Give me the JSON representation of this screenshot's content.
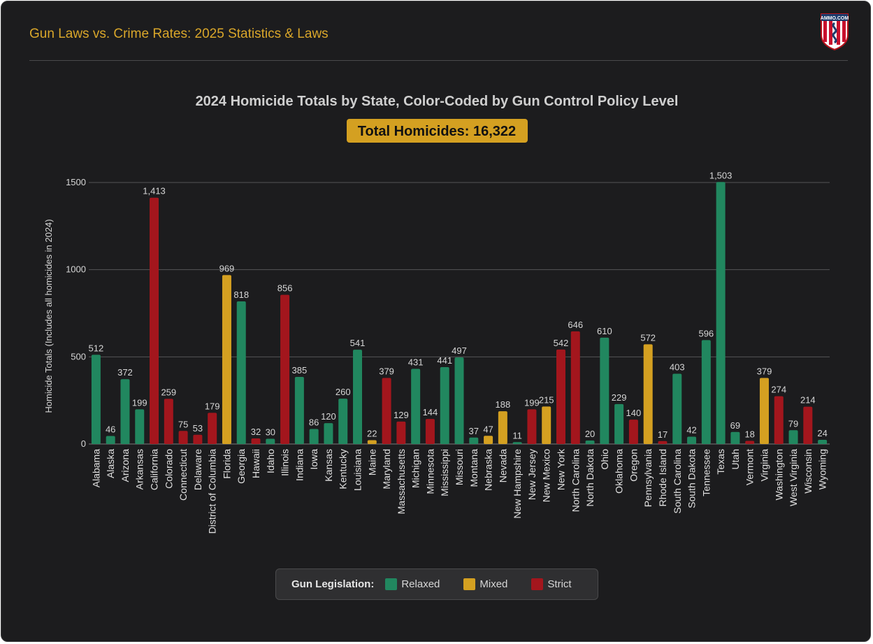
{
  "header": {
    "title": "Gun Laws vs. Crime Rates: 2025 Statistics & Laws",
    "logo_text": "AMMO.COM"
  },
  "colors": {
    "background": "#1c1c1e",
    "accent": "#d9a62a",
    "relaxed": "#21875f",
    "mixed": "#d4a021",
    "strict": "#a3161d"
  },
  "legend": {
    "title": "Gun Legislation:",
    "items": [
      {
        "label": "Relaxed",
        "key": "relaxed"
      },
      {
        "label": "Mixed",
        "key": "mixed"
      },
      {
        "label": "Strict",
        "key": "strict"
      }
    ]
  },
  "chart_data": {
    "type": "bar",
    "title": "2024 Homicide Totals by State, Color-Coded by Gun Control Policy Level",
    "badge": "Total Homicides: 16,322",
    "ylabel": "Homicide Totals (Includes all homicides in 2024)",
    "xlabel": "",
    "ylim": [
      0,
      1500
    ],
    "yticks": [
      0,
      500,
      1000,
      1500
    ],
    "grid": true,
    "legend_position": "bottom",
    "categories": [
      "Alabama",
      "Alaska",
      "Arizona",
      "Arkansas",
      "California",
      "Colorado",
      "Connecticut",
      "Delaware",
      "District of Columbia",
      "Florida",
      "Georgia",
      "Hawaii",
      "Idaho",
      "Illinois",
      "Indiana",
      "Iowa",
      "Kansas",
      "Kentucky",
      "Louisiana",
      "Maine",
      "Maryland",
      "Massachusetts",
      "Michigan",
      "Minnesota",
      "Mississippi",
      "Missouri",
      "Montana",
      "Nebraska",
      "Nevada",
      "New Hampshire",
      "New Jersey",
      "New Mexico",
      "New York",
      "North Carolina",
      "North Dakota",
      "Ohio",
      "Oklahoma",
      "Oregon",
      "Pennsylvania",
      "Rhode Island",
      "South Carolina",
      "South Dakota",
      "Tennessee",
      "Texas",
      "Utah",
      "Vermont",
      "Virginia",
      "Washington",
      "West Virginia",
      "Wisconsin",
      "Wyoming"
    ],
    "values": [
      512,
      46,
      372,
      199,
      1413,
      259,
      75,
      53,
      179,
      969,
      818,
      32,
      30,
      856,
      385,
      86,
      120,
      260,
      541,
      22,
      379,
      129,
      431,
      144,
      441,
      497,
      37,
      47,
      188,
      11,
      199,
      215,
      542,
      646,
      20,
      610,
      229,
      140,
      572,
      17,
      403,
      42,
      596,
      1503,
      69,
      18,
      379,
      274,
      79,
      214,
      24
    ],
    "value_labels": [
      "512",
      "46",
      "372",
      "199",
      "1,413",
      "259",
      "75",
      "53",
      "179",
      "969",
      "818",
      "32",
      "30",
      "856",
      "385",
      "86",
      "120",
      "260",
      "541",
      "22",
      "379",
      "129",
      "431",
      "144",
      "441",
      "497",
      "37",
      "47",
      "188",
      "11",
      "199",
      "215",
      "542",
      "646",
      "20",
      "610",
      "229",
      "140",
      "572",
      "17",
      "403",
      "42",
      "596",
      "1,503",
      "69",
      "18",
      "379",
      "274",
      "79",
      "214",
      "24"
    ],
    "policy": [
      "relaxed",
      "relaxed",
      "relaxed",
      "relaxed",
      "strict",
      "strict",
      "strict",
      "strict",
      "strict",
      "mixed",
      "relaxed",
      "strict",
      "relaxed",
      "strict",
      "relaxed",
      "relaxed",
      "relaxed",
      "relaxed",
      "relaxed",
      "mixed",
      "strict",
      "strict",
      "relaxed",
      "strict",
      "relaxed",
      "relaxed",
      "relaxed",
      "mixed",
      "mixed",
      "relaxed",
      "strict",
      "mixed",
      "strict",
      "strict",
      "relaxed",
      "relaxed",
      "relaxed",
      "strict",
      "mixed",
      "strict",
      "relaxed",
      "relaxed",
      "relaxed",
      "relaxed",
      "relaxed",
      "strict",
      "mixed",
      "strict",
      "relaxed",
      "strict",
      "relaxed"
    ]
  }
}
